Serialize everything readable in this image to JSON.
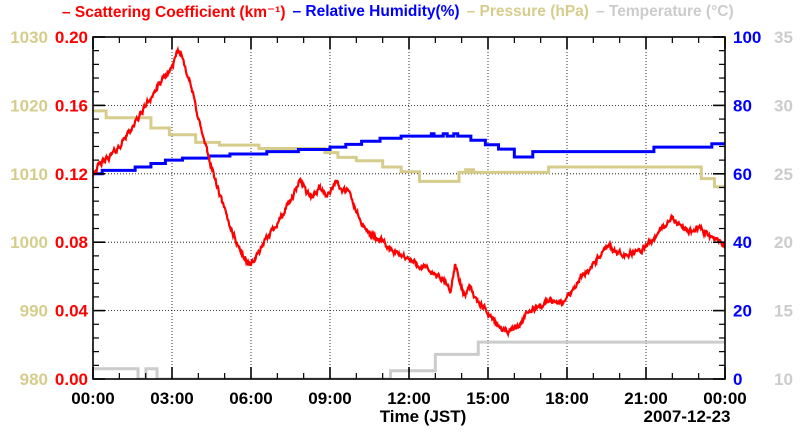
{
  "chart_data": {
    "type": "line",
    "title": "",
    "xlabel": "Time (JST)",
    "date_label": "2007-12-23",
    "background_color": "#ffffff",
    "frame_color": "#000000",
    "grid": true,
    "legend_position": "top",
    "legend": [
      {
        "id": "scattering",
        "label": "Scattering Coefficient (km⁻¹)",
        "color": "#ff0000",
        "marker": "–"
      },
      {
        "id": "humidity",
        "label": "Relative Humidity(%)",
        "color": "#0000ff",
        "marker": "–"
      },
      {
        "id": "pressure",
        "label": "Pressure (hPa)",
        "color": "#d6cd8d",
        "marker": "–"
      },
      {
        "id": "temperature",
        "label": "Temperature (°C)",
        "color": "#cccccc",
        "marker": "–"
      }
    ],
    "x_axis": {
      "label": "Time (JST)",
      "range_hours": [
        0,
        24
      ],
      "major_tick_hours": [
        0,
        3,
        6,
        9,
        12,
        15,
        18,
        21,
        24
      ],
      "tick_labels": [
        "00:00",
        "03:00",
        "06:00",
        "09:00",
        "12:00",
        "15:00",
        "18:00",
        "21:00",
        "00:00"
      ],
      "minor_divisions_per_major": 3
    },
    "y_axes": {
      "pressure": {
        "side": "left-outer",
        "color": "#d6cd8d",
        "range": [
          980,
          1030
        ],
        "tick_labels": [
          "980",
          "990",
          "1000",
          "1010",
          "1020",
          "1030"
        ],
        "minor_divisions_per_major": 5
      },
      "scattering": {
        "side": "left-inner",
        "color": "#ff0000",
        "range": [
          0,
          0.2
        ],
        "tick_labels": [
          "0.00",
          "0.04",
          "0.08",
          "0.12",
          "0.16",
          "0.20"
        ],
        "minor_divisions_per_major": 5
      },
      "humidity": {
        "side": "right-inner",
        "color": "#0000ff",
        "range": [
          0,
          100
        ],
        "tick_labels": [
          "0",
          "20",
          "40",
          "60",
          "80",
          "100"
        ],
        "minor_divisions_per_major": 5
      },
      "temperature": {
        "side": "right-outer",
        "color": "#cccccc",
        "range": [
          10,
          35
        ],
        "tick_labels": [
          "10",
          "15",
          "20",
          "25",
          "30",
          "35"
        ],
        "minor_divisions_per_major": 5
      }
    },
    "series": {
      "scattering": {
        "axis": "scattering",
        "color": "#ff0000",
        "interp": "linear",
        "noise": 0.0032,
        "width": 2.2,
        "points": [
          [
            0,
            0.121
          ],
          [
            0.3,
            0.126
          ],
          [
            0.7,
            0.131
          ],
          [
            1.0,
            0.136
          ],
          [
            1.3,
            0.143
          ],
          [
            1.7,
            0.152
          ],
          [
            2.0,
            0.16
          ],
          [
            2.3,
            0.167
          ],
          [
            2.6,
            0.174
          ],
          [
            2.9,
            0.18
          ],
          [
            3.1,
            0.186
          ],
          [
            3.25,
            0.192
          ],
          [
            3.4,
            0.188
          ],
          [
            3.6,
            0.178
          ],
          [
            3.8,
            0.166
          ],
          [
            4.0,
            0.153
          ],
          [
            4.2,
            0.14
          ],
          [
            4.5,
            0.124
          ],
          [
            4.8,
            0.108
          ],
          [
            5.1,
            0.094
          ],
          [
            5.4,
            0.082
          ],
          [
            5.7,
            0.072
          ],
          [
            5.9,
            0.067
          ],
          [
            6.1,
            0.069
          ],
          [
            6.4,
            0.077
          ],
          [
            6.8,
            0.087
          ],
          [
            7.2,
            0.096
          ],
          [
            7.6,
            0.107
          ],
          [
            7.9,
            0.117
          ],
          [
            8.1,
            0.11
          ],
          [
            8.3,
            0.106
          ],
          [
            8.6,
            0.112
          ],
          [
            8.9,
            0.107
          ],
          [
            9.2,
            0.116
          ],
          [
            9.45,
            0.11
          ],
          [
            9.7,
            0.11
          ],
          [
            10.0,
            0.098
          ],
          [
            10.3,
            0.088
          ],
          [
            10.6,
            0.084
          ],
          [
            11.0,
            0.08
          ],
          [
            11.4,
            0.074
          ],
          [
            11.8,
            0.072
          ],
          [
            12.2,
            0.068
          ],
          [
            12.6,
            0.065
          ],
          [
            13.0,
            0.061
          ],
          [
            13.4,
            0.056
          ],
          [
            13.6,
            0.052
          ],
          [
            13.75,
            0.067
          ],
          [
            13.9,
            0.058
          ],
          [
            14.1,
            0.049
          ],
          [
            14.35,
            0.055
          ],
          [
            14.5,
            0.047
          ],
          [
            14.8,
            0.042
          ],
          [
            15.1,
            0.037
          ],
          [
            15.4,
            0.031
          ],
          [
            15.8,
            0.028
          ],
          [
            16.2,
            0.032
          ],
          [
            16.6,
            0.04
          ],
          [
            17.0,
            0.043
          ],
          [
            17.4,
            0.046
          ],
          [
            17.8,
            0.044
          ],
          [
            18.2,
            0.052
          ],
          [
            18.6,
            0.061
          ],
          [
            19.0,
            0.067
          ],
          [
            19.3,
            0.073
          ],
          [
            19.6,
            0.078
          ],
          [
            19.9,
            0.073
          ],
          [
            20.3,
            0.073
          ],
          [
            20.8,
            0.075
          ],
          [
            21.2,
            0.08
          ],
          [
            21.6,
            0.088
          ],
          [
            22.0,
            0.094
          ],
          [
            22.3,
            0.089
          ],
          [
            22.6,
            0.086
          ],
          [
            23.0,
            0.089
          ],
          [
            23.4,
            0.084
          ],
          [
            23.7,
            0.082
          ],
          [
            24,
            0.078
          ]
        ]
      },
      "humidity": {
        "axis": "humidity",
        "color": "#0000ff",
        "interp": "step",
        "width": 3,
        "points": [
          [
            0,
            60
          ],
          [
            0.35,
            61
          ],
          [
            1.6,
            62
          ],
          [
            2.2,
            63
          ],
          [
            2.75,
            64
          ],
          [
            3.4,
            64.6
          ],
          [
            4.4,
            65.2
          ],
          [
            5.2,
            65.8
          ],
          [
            6.6,
            66.5
          ],
          [
            7.8,
            67.1
          ],
          [
            9.0,
            67.8
          ],
          [
            9.6,
            68.6
          ],
          [
            10.2,
            69.5
          ],
          [
            10.9,
            70.4
          ],
          [
            11.7,
            71
          ],
          [
            12.85,
            71.7
          ],
          [
            12.95,
            71
          ],
          [
            13.3,
            71.7
          ],
          [
            13.45,
            71
          ],
          [
            13.7,
            71.7
          ],
          [
            13.85,
            71
          ],
          [
            14.35,
            69.8
          ],
          [
            14.9,
            68.5
          ],
          [
            15.4,
            67.2
          ],
          [
            16.0,
            64.9
          ],
          [
            16.7,
            66.5
          ],
          [
            21.3,
            67.8
          ],
          [
            23.5,
            68.8
          ]
        ]
      },
      "pressure": {
        "axis": "pressure",
        "color": "#d6cd8d",
        "interp": "step",
        "width": 3,
        "points": [
          [
            0,
            1019.2
          ],
          [
            0.5,
            1018.2
          ],
          [
            2.2,
            1016.7
          ],
          [
            2.9,
            1015.7
          ],
          [
            3.9,
            1014.6
          ],
          [
            4.8,
            1014.2
          ],
          [
            6.3,
            1013.7
          ],
          [
            8.8,
            1013.1
          ],
          [
            9.3,
            1012.4
          ],
          [
            10.0,
            1011.9
          ],
          [
            11.0,
            1011.0
          ],
          [
            11.7,
            1010.3
          ],
          [
            12.4,
            1008.9
          ],
          [
            13.9,
            1010.2
          ],
          [
            14.15,
            1010.6
          ],
          [
            14.25,
            1010.2
          ],
          [
            14.35,
            1010.6
          ],
          [
            14.45,
            1010.2
          ],
          [
            17.3,
            1011.0
          ],
          [
            23.1,
            1009.3
          ],
          [
            23.6,
            1008.1
          ]
        ]
      },
      "temperature": {
        "axis": "temperature",
        "color": "#cccccc",
        "interp": "step",
        "width": 3,
        "points": [
          [
            0,
            10.75
          ],
          [
            1.71,
            10.0
          ],
          [
            2.01,
            10.75
          ],
          [
            2.43,
            10.0
          ],
          [
            11.3,
            10.6
          ],
          [
            13.0,
            11.8
          ],
          [
            14.63,
            12.7
          ]
        ]
      }
    }
  }
}
